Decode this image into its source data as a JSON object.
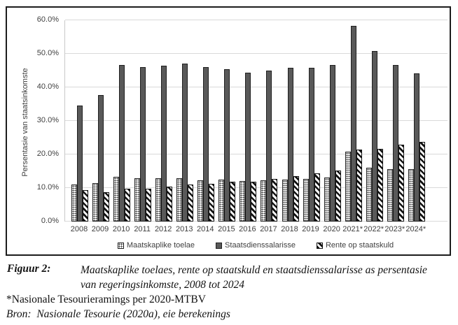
{
  "colors": {
    "bar_solid": "#595959",
    "bar_border": "#1f1f1f",
    "gridline": "#d9d9d9",
    "chart_text": "#3f3f3f",
    "figure_border": "#1c1c1c"
  },
  "chart_data": {
    "type": "bar",
    "title": "",
    "xlabel": "",
    "ylabel": "Persentasie van staatsinkomste",
    "ylim": [
      0,
      60
    ],
    "ytick_step": 10,
    "ytick_suffix": "%",
    "grid": true,
    "legend_position": "bottom",
    "categories": [
      "2008",
      "2009",
      "2010",
      "2011",
      "2012",
      "2013",
      "2014",
      "2015",
      "2016",
      "2017",
      "2018",
      "2019",
      "2020",
      "2021*",
      "2022*",
      "2023*",
      "2024*"
    ],
    "series": [
      {
        "name": "Maatskaplike toelae",
        "pattern": "dots",
        "values": [
          11.0,
          11.4,
          13.3,
          12.9,
          12.9,
          12.9,
          12.2,
          12.4,
          12.1,
          12.3,
          12.5,
          12.8,
          13.1,
          20.9,
          16.0,
          15.6,
          15.6
        ]
      },
      {
        "name": "Staatsdienssalarisse",
        "pattern": "solid",
        "values": [
          34.5,
          37.7,
          46.6,
          46.1,
          46.4,
          47.1,
          46.1,
          45.4,
          44.4,
          45.0,
          45.9,
          45.8,
          46.6,
          58.4,
          50.8,
          46.6,
          44.1
        ]
      },
      {
        "name": "Rente op staatskuld",
        "pattern": "diag",
        "values": [
          9.3,
          8.7,
          9.8,
          9.8,
          10.4,
          11.0,
          11.2,
          11.8,
          11.9,
          12.8,
          13.5,
          14.4,
          15.3,
          21.4,
          21.7,
          22.9,
          23.7
        ]
      }
    ]
  },
  "caption": {
    "label": "Figuur 2:",
    "text": "Maatskaplike toelaes, rente op staatskuld en staatsdienssalarisse as persentasie van regeringsinkomste, 2008 tot 2024"
  },
  "note": "*Nasionale Tesourieramings per 2020-MTBV",
  "source": "Bron:  Nasionale Tesourie (2020a), eie berekenings"
}
